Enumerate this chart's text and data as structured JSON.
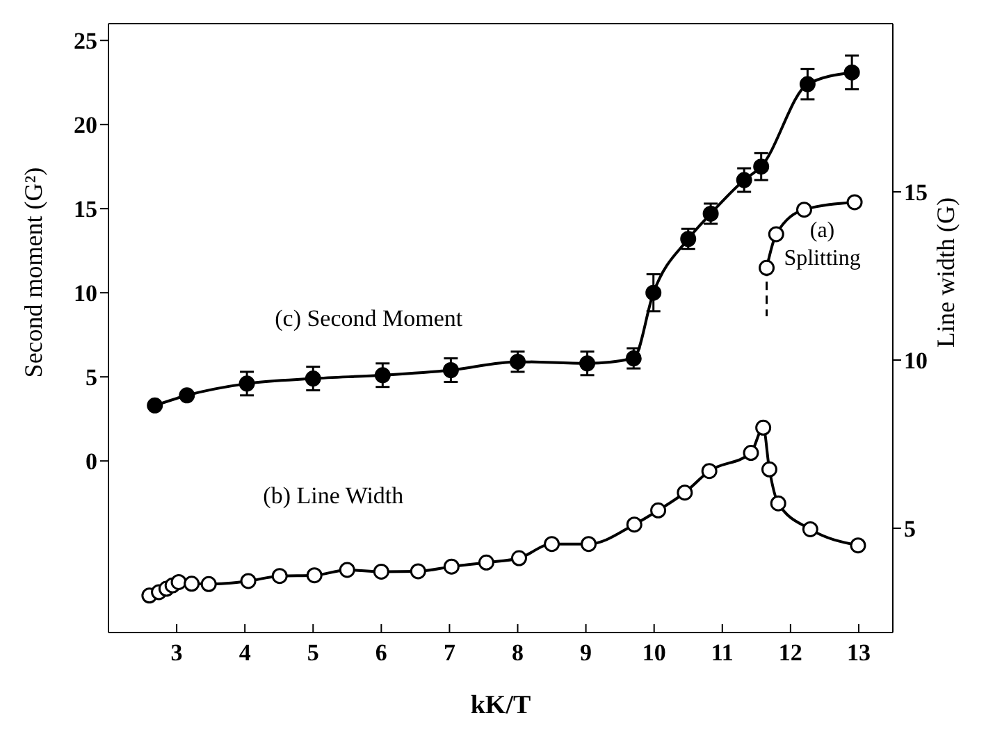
{
  "chart_data": {
    "type": "line",
    "xlabel": "kK/T",
    "ylabel": "Second moment (G²)",
    "y2label": "Line width (G)",
    "xlim": [
      2,
      13.5
    ],
    "xticks": [
      3,
      4,
      5,
      6,
      7,
      8,
      9,
      10,
      11,
      12,
      13
    ],
    "ylim": [
      -10.2,
      26
    ],
    "yticks": [
      0,
      5,
      10,
      15,
      20,
      25
    ],
    "y2lim": [
      1.9,
      20
    ],
    "y2ticks": [
      5,
      10,
      15
    ],
    "marker": "circle",
    "line_style": "solid",
    "series": [
      {
        "name": "(c) Second Moment",
        "color": "#000000",
        "x": [
          2.68,
          3.15,
          4.03,
          5.0,
          6.02,
          7.02,
          8.0,
          9.02,
          9.7,
          9.99,
          10.5,
          10.83,
          11.32,
          11.57,
          12.25,
          12.9
        ],
        "values": [
          3.3,
          3.9,
          4.6,
          4.9,
          5.1,
          5.4,
          5.9,
          5.8,
          6.1,
          10.0,
          13.2,
          14.7,
          16.7,
          17.5,
          22.4,
          23.1
        ],
        "errors": [
          null,
          null,
          0.7,
          0.7,
          0.7,
          0.7,
          0.6,
          0.7,
          0.6,
          1.1,
          0.6,
          0.6,
          0.7,
          0.8,
          0.9,
          1.0
        ]
      },
      {
        "name": "(b) Line Width",
        "axis": "y2",
        "color": "#000000",
        "x": [
          2.6,
          2.74,
          2.85,
          2.94,
          3.03,
          3.22,
          3.47,
          4.05,
          4.51,
          5.02,
          5.5,
          6.0,
          6.54,
          7.03,
          7.54,
          8.02,
          8.5,
          9.04,
          9.71,
          10.06,
          10.45,
          10.81,
          11.42,
          11.6,
          11.69,
          11.82,
          12.29,
          12.99
        ],
        "values": [
          3.0,
          3.1,
          3.2,
          3.3,
          3.4,
          3.35,
          3.34,
          3.43,
          3.58,
          3.6,
          3.76,
          3.71,
          3.72,
          3.86,
          3.98,
          4.11,
          4.53,
          4.53,
          5.11,
          5.53,
          6.06,
          6.7,
          7.24,
          7.99,
          6.75,
          5.74,
          4.97,
          4.49
        ]
      },
      {
        "name": "(a) Splitting",
        "axis": "y2",
        "color": "#000000",
        "x": [
          11.65,
          11.79,
          12.2,
          12.94
        ],
        "values": [
          12.74,
          13.74,
          14.47,
          14.69
        ]
      },
      {
        "axis": "y2",
        "color": "#000000",
        "marker": "none",
        "line_style": "dashed",
        "x": [
          11.65,
          11.65
        ],
        "values": [
          12.74,
          11.3
        ]
      }
    ]
  }
}
